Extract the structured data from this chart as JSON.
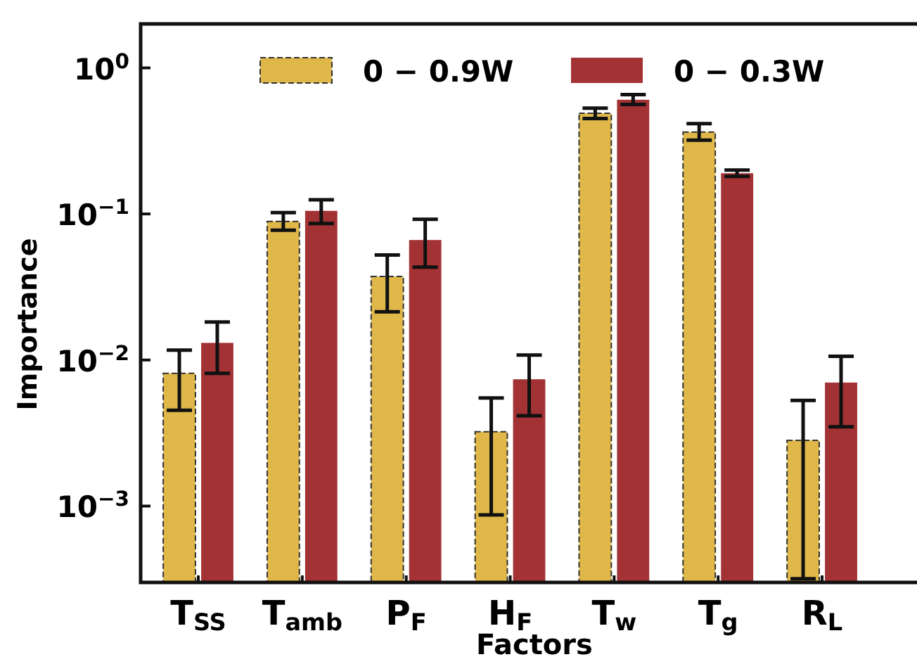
{
  "chart_data": {
    "type": "bar",
    "xlabel": "Factors",
    "ylabel": "Importance",
    "categories": [
      "T$_{SS}$",
      "T$_{amb}$",
      "P$_{F}$",
      "H$_{F}$",
      "T$_{w}$",
      "T$_{g}$",
      "R$_{L}$"
    ],
    "series": [
      {
        "name": "0 − 0.9W",
        "color": "#e0b84a",
        "line_style": "dashed",
        "values": [
          0.0081,
          0.089,
          0.0373,
          0.00323,
          0.489,
          0.364,
          0.00282
        ],
        "errors": [
          [
            0.00453,
            0.0117
          ],
          [
            0.0775,
            0.102
          ],
          [
            0.0214,
            0.0523
          ],
          [
            0.00087,
            0.0055
          ],
          [
            0.45,
            0.53
          ],
          [
            0.32,
            0.415
          ],
          [
            0.000318,
            0.00529
          ]
        ]
      },
      {
        "name": "0 − 0.3W",
        "color": "#a33234",
        "values": [
          0.0131,
          0.105,
          0.0663,
          0.00738,
          0.605,
          0.19,
          0.00701
        ],
        "errors": [
          [
            0.0081,
            0.0182
          ],
          [
            0.086,
            0.125
          ],
          [
            0.0433,
            0.092
          ],
          [
            0.00415,
            0.0108
          ],
          [
            0.562,
            0.656
          ],
          [
            0.181,
            0.2
          ],
          [
            0.00349,
            0.0106
          ]
        ]
      }
    ],
    "log": "y",
    "ylim": [
      0.0003,
      2
    ],
    "yticks": [
      {
        "value": 0.001,
        "label": "10$^{−3}$"
      },
      {
        "value": 0.01,
        "label": "10$^{−2}$"
      },
      {
        "value": 0.1,
        "label": "10$^{−1}$"
      },
      {
        "value": 1,
        "label": "10$^{0}$"
      }
    ],
    "legend": "top",
    "grid": false
  }
}
